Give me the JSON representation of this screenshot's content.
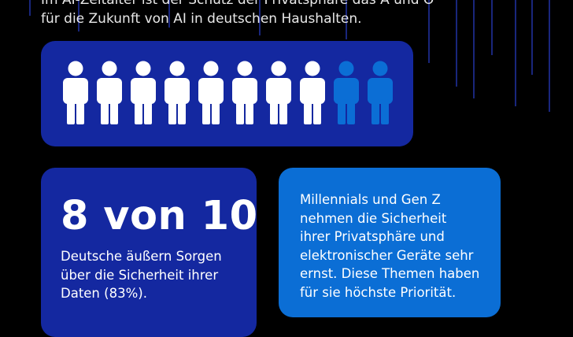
{
  "header": {
    "lines": [
      "Im AI-Zeitalter ist der Schutz der Privatsphäre das A und O",
      "für die Zukunft von AI in deutschen Haushalten."
    ]
  },
  "stats": [
    {
      "headline": "8 von 10",
      "lines": [
        "Deutsche äußern Sorgen",
        "über die Sicherheit ihrer",
        "Daten (83%)."
      ]
    },
    {
      "lines": [
        "Millennials und Gen Z",
        "nehmen die Sicherheit",
        "ihrer Privatsphäre und",
        "elektronischer Geräte sehr",
        "ernst. Diese Themen haben",
        "für sie höchste Priorität."
      ]
    }
  ]
}
